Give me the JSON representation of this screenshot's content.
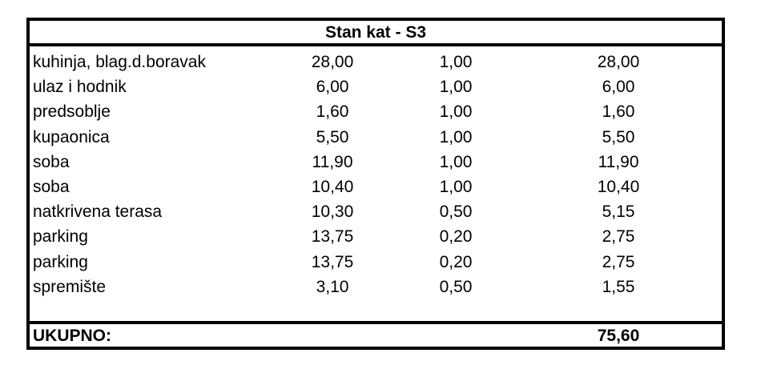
{
  "table": {
    "title": "Stan kat - S3",
    "rows": [
      {
        "name": "kuhinja, blag.d.boravak",
        "area": "28,00",
        "coef": "1,00",
        "total": "28,00"
      },
      {
        "name": "ulaz i hodnik",
        "area": "6,00",
        "coef": "1,00",
        "total": "6,00"
      },
      {
        "name": "predsoblje",
        "area": "1,60",
        "coef": "1,00",
        "total": "1,60"
      },
      {
        "name": "kupaonica",
        "area": "5,50",
        "coef": "1,00",
        "total": "5,50"
      },
      {
        "name": "soba",
        "area": "11,90",
        "coef": "1,00",
        "total": "11,90"
      },
      {
        "name": "soba",
        "area": "10,40",
        "coef": "1,00",
        "total": "10,40"
      },
      {
        "name": "natkrivena terasa",
        "area": "10,30",
        "coef": "0,50",
        "total": "5,15"
      },
      {
        "name": "parking",
        "area": "13,75",
        "coef": "0,20",
        "total": "2,75"
      },
      {
        "name": "parking",
        "area": "13,75",
        "coef": "0,20",
        "total": "2,75"
      },
      {
        "name": "spremište",
        "area": "3,10",
        "coef": "0,50",
        "total": "1,55"
      }
    ],
    "total_label": "UKUPNO:",
    "total_value": "75,60"
  }
}
